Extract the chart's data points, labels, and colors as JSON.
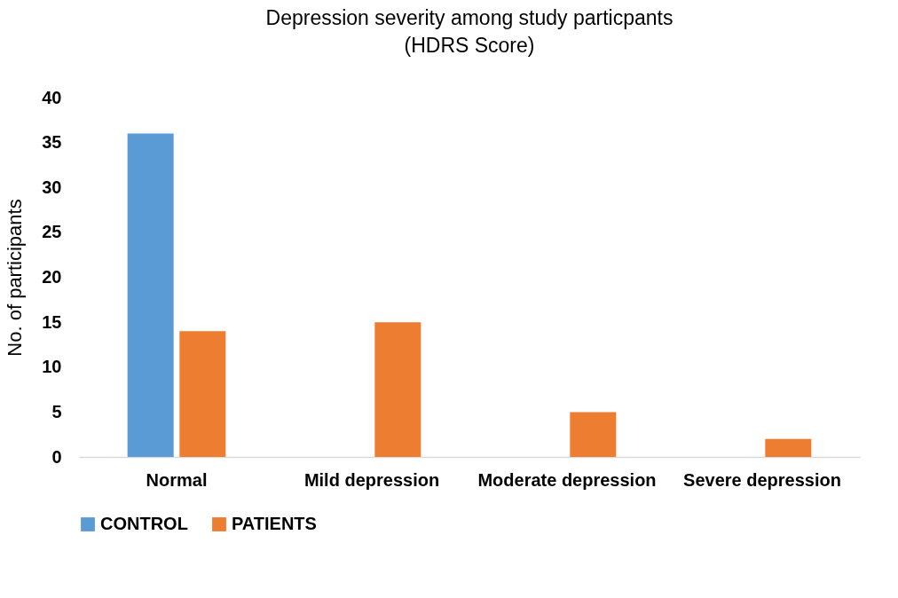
{
  "chart_data": {
    "type": "bar",
    "title": "Depression severity among study particpants",
    "subtitle": "(HDRS Score)",
    "ylabel": "No. of participants",
    "categories": [
      "Normal",
      "Mild depression",
      "Moderate depression",
      "Severe depression"
    ],
    "series": [
      {
        "name": "CONTROL",
        "color": "#5b9bd5",
        "values": [
          36,
          0,
          0,
          0
        ]
      },
      {
        "name": "PATIENTS",
        "color": "#ed7d31",
        "values": [
          14,
          15,
          5,
          2
        ]
      }
    ],
    "ylim": [
      0,
      40
    ],
    "yticks": [
      0,
      5,
      10,
      15,
      20,
      25,
      30,
      35,
      40
    ],
    "grid": false,
    "legend": "bottom"
  }
}
